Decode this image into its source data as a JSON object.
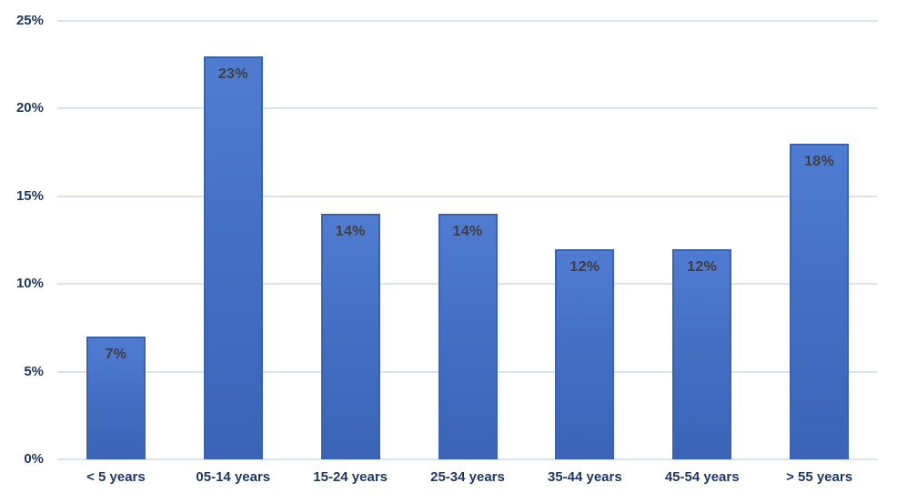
{
  "chart_data": {
    "type": "bar",
    "title": "",
    "xlabel": "",
    "ylabel": "",
    "categories": [
      "< 5 years",
      "05-14 years",
      "15-24 years",
      "25-34 years",
      "35-44 years",
      "45-54 years",
      "> 55 years"
    ],
    "values": [
      7,
      23,
      14,
      14,
      12,
      12,
      18
    ],
    "data_labels": [
      "7%",
      "23%",
      "14%",
      "14%",
      "12%",
      "12%",
      "18%"
    ],
    "ylim": [
      0,
      25
    ],
    "yticks": [
      {
        "value": 25,
        "label": "25%"
      },
      {
        "value": 20,
        "label": "20%"
      },
      {
        "value": 15,
        "label": "15%"
      },
      {
        "value": 10,
        "label": "10%"
      },
      {
        "value": 5,
        "label": "5%"
      },
      {
        "value": 0,
        "label": "0%"
      }
    ],
    "grid": "horizontal",
    "legend": "none",
    "colors": {
      "bar_fill_top": "#4f7cd1",
      "bar_fill_bottom": "#3b64b6",
      "bar_border": "#3a64ad",
      "data_label": "#404040",
      "axis_label": "#1f3864",
      "gridline": "#dde2ec",
      "background": "#ffffff"
    }
  }
}
